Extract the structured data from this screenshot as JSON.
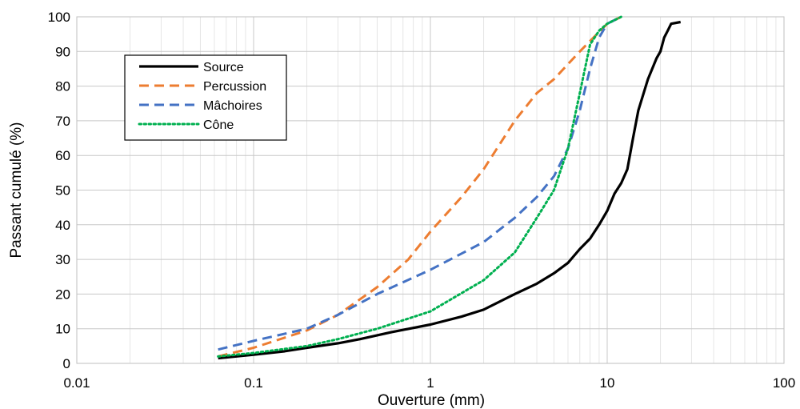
{
  "chart_data": {
    "type": "line",
    "title": "",
    "xlabel": "Ouverture (mm)",
    "ylabel": "Passant cumulé (%)",
    "x_scale": "log",
    "xlim": [
      0.01,
      100
    ],
    "ylim": [
      0,
      100
    ],
    "x_ticks": [
      0.01,
      0.1,
      1,
      10,
      100
    ],
    "x_tick_labels": [
      "0.01",
      "0.1",
      "1",
      "10",
      "100"
    ],
    "y_ticks": [
      0,
      10,
      20,
      30,
      40,
      50,
      60,
      70,
      80,
      90,
      100
    ],
    "y_tick_labels": [
      "0",
      "10",
      "20",
      "30",
      "40",
      "50",
      "60",
      "70",
      "80",
      "90",
      "100"
    ],
    "grid": true,
    "legend_position": "top-left",
    "series": [
      {
        "name": "Source",
        "color": "#000000",
        "style": "solid",
        "points": [
          [
            0.063,
            1.5
          ],
          [
            0.1,
            2.5
          ],
          [
            0.15,
            3.5
          ],
          [
            0.2,
            4.5
          ],
          [
            0.3,
            5.8
          ],
          [
            0.4,
            7
          ],
          [
            0.6,
            9
          ],
          [
            1,
            11.2
          ],
          [
            1.5,
            13.5
          ],
          [
            2,
            15.5
          ],
          [
            3,
            20
          ],
          [
            4,
            23
          ],
          [
            5,
            26
          ],
          [
            6,
            29
          ],
          [
            7,
            33
          ],
          [
            8,
            36
          ],
          [
            9,
            40
          ],
          [
            10,
            44
          ],
          [
            11,
            49
          ],
          [
            12,
            52
          ],
          [
            13,
            56
          ],
          [
            14,
            65
          ],
          [
            15,
            73
          ],
          [
            17,
            82
          ],
          [
            19,
            88
          ],
          [
            20,
            90
          ],
          [
            21,
            94
          ],
          [
            22,
            96
          ],
          [
            23,
            98
          ],
          [
            26,
            98.5
          ]
        ]
      },
      {
        "name": "Percussion",
        "color": "#ED7D31",
        "style": "dashed",
        "points": [
          [
            0.063,
            2
          ],
          [
            0.1,
            4.5
          ],
          [
            0.2,
            9.5
          ],
          [
            0.3,
            14
          ],
          [
            0.5,
            22
          ],
          [
            0.75,
            30
          ],
          [
            1,
            38
          ],
          [
            1.5,
            48
          ],
          [
            2,
            56
          ],
          [
            3,
            70
          ],
          [
            4,
            78
          ],
          [
            5,
            82
          ],
          [
            7,
            90
          ],
          [
            10,
            98
          ],
          [
            12,
            100
          ]
        ]
      },
      {
        "name": "Mâchoires",
        "color": "#4472C4",
        "style": "dashed",
        "points": [
          [
            0.063,
            4
          ],
          [
            0.1,
            6.5
          ],
          [
            0.2,
            10
          ],
          [
            0.3,
            14
          ],
          [
            0.5,
            20
          ],
          [
            1,
            27
          ],
          [
            2,
            35
          ],
          [
            3,
            42
          ],
          [
            4,
            48
          ],
          [
            5,
            54
          ],
          [
            6,
            62
          ],
          [
            7,
            73
          ],
          [
            8,
            85
          ],
          [
            9,
            94
          ],
          [
            10,
            98
          ],
          [
            12,
            100
          ]
        ]
      },
      {
        "name": "Cône",
        "color": "#00B050",
        "style": "dotted",
        "points": [
          [
            0.063,
            2
          ],
          [
            0.1,
            3
          ],
          [
            0.2,
            5
          ],
          [
            0.3,
            7
          ],
          [
            0.5,
            10
          ],
          [
            1,
            15
          ],
          [
            2,
            24
          ],
          [
            3,
            32
          ],
          [
            4,
            42
          ],
          [
            5,
            50
          ],
          [
            6,
            62
          ],
          [
            7,
            78
          ],
          [
            8,
            92
          ],
          [
            9,
            96
          ],
          [
            10,
            98
          ],
          [
            12,
            100
          ]
        ]
      }
    ]
  }
}
